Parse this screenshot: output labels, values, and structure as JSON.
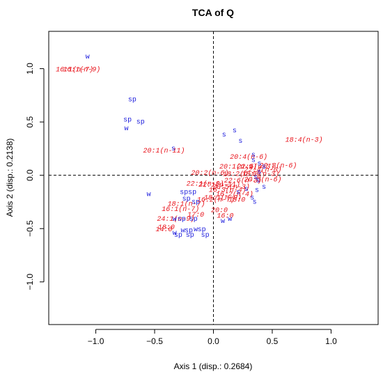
{
  "chart_data": {
    "type": "scatter",
    "title": "TCA of Q",
    "xlabel": "Axis 1 (disp.: 0.2684)",
    "ylabel": "Axis 2 (disp.: 0.2138)",
    "xlim": [
      -1.4,
      1.4
    ],
    "ylim": [
      -1.4,
      1.35
    ],
    "xticks": [
      -1.0,
      -0.5,
      0.0,
      0.5,
      1.0
    ],
    "xtick_labels": [
      "−1.0",
      "−0.5",
      "0.0",
      "0.5",
      "1.0"
    ],
    "yticks": [
      -1.0,
      -0.5,
      0.0,
      0.5,
      1.0
    ],
    "ytick_labels": [
      "−1.0",
      "−0.5",
      "0.0",
      "0.5",
      "1.0"
    ],
    "reference_lines": {
      "x": 0,
      "y": 0,
      "style": "dashed"
    },
    "colors": {
      "fatty_acids": "#e8141c",
      "conditions": "#1a1adc"
    },
    "series": [
      {
        "color": "#e8141c",
        "points": [
          {
            "x": -1.12,
            "y": 1.0,
            "label": "16:1(n-9)"
          },
          {
            "x": -1.18,
            "y": 1.0,
            "label": "16:1(n-7)"
          },
          {
            "x": -0.42,
            "y": 0.24,
            "label": "20:1(n-11)"
          },
          {
            "x": 0.77,
            "y": 0.34,
            "label": "18:4(n-3)"
          },
          {
            "x": 0.3,
            "y": 0.18,
            "label": "20:4(n-6)"
          },
          {
            "x": 0.55,
            "y": 0.1,
            "label": "20:3(n-6)"
          },
          {
            "x": 0.21,
            "y": 0.09,
            "label": "20:1(n-9)"
          },
          {
            "x": 0.36,
            "y": 0.09,
            "label": "22:5(n-3)"
          },
          {
            "x": 0.42,
            "y": 0.06,
            "label": "22:4(n-6)"
          },
          {
            "x": 0.4,
            "y": 0.02,
            "label": "18:3(n-3)"
          },
          {
            "x": 0.24,
            "y": 0.02,
            "label": "18:2(n-6)"
          },
          {
            "x": -0.03,
            "y": 0.03,
            "label": "20:2(n-6)"
          },
          {
            "x": 0.42,
            "y": -0.03,
            "label": "20:5(n-6)"
          },
          {
            "x": 0.25,
            "y": -0.04,
            "label": "22:6(n-3)"
          },
          {
            "x": -0.07,
            "y": -0.07,
            "label": "22:1(n-9)"
          },
          {
            "x": 0.05,
            "y": -0.08,
            "label": "22:1(n-11)"
          },
          {
            "x": 0.15,
            "y": -0.1,
            "label": "20:5(n-3)"
          },
          {
            "x": 0.12,
            "y": -0.13,
            "label": "16:3(n-4)"
          },
          {
            "x": 0.18,
            "y": -0.17,
            "label": "16:2(n-4)"
          },
          {
            "x": 0.08,
            "y": -0.2,
            "label": "18:1(n-9)"
          },
          {
            "x": 0.02,
            "y": -0.22,
            "label": "16:2(n-7)"
          },
          {
            "x": 0.2,
            "y": -0.22,
            "label": "15:0"
          },
          {
            "x": -0.23,
            "y": -0.26,
            "label": "18:1(n-7)"
          },
          {
            "x": -0.28,
            "y": -0.31,
            "label": "16:1(n-7)"
          },
          {
            "x": 0.05,
            "y": -0.32,
            "label": "20:0"
          },
          {
            "x": -0.15,
            "y": -0.36,
            "label": "17:0"
          },
          {
            "x": -0.32,
            "y": -0.4,
            "label": "24:1(n-9)"
          },
          {
            "x": 0.1,
            "y": -0.37,
            "label": "16:0"
          },
          {
            "x": -0.4,
            "y": -0.48,
            "label": "18:0"
          },
          {
            "x": -0.42,
            "y": -0.5,
            "label": "14:0"
          }
        ]
      },
      {
        "color": "#1a1adc",
        "points": [
          {
            "x": -1.07,
            "y": 1.12,
            "label": "w"
          },
          {
            "x": -0.69,
            "y": 0.72,
            "label": "sp"
          },
          {
            "x": -0.73,
            "y": 0.53,
            "label": "sp"
          },
          {
            "x": -0.62,
            "y": 0.51,
            "label": "sp"
          },
          {
            "x": -0.74,
            "y": 0.45,
            "label": "w"
          },
          {
            "x": 0.09,
            "y": 0.39,
            "label": "s"
          },
          {
            "x": 0.18,
            "y": 0.43,
            "label": "s"
          },
          {
            "x": -0.34,
            "y": 0.26,
            "label": "s"
          },
          {
            "x": 0.23,
            "y": 0.33,
            "label": "s"
          },
          {
            "x": 0.34,
            "y": 0.2,
            "label": "s"
          },
          {
            "x": 0.34,
            "y": 0.15,
            "label": "s"
          },
          {
            "x": 0.39,
            "y": 0.12,
            "label": "s"
          },
          {
            "x": 0.43,
            "y": 0.09,
            "label": "s"
          },
          {
            "x": 0.39,
            "y": 0.04,
            "label": "s"
          },
          {
            "x": 0.36,
            "y": -0.01,
            "label": "s"
          },
          {
            "x": 0.38,
            "y": -0.04,
            "label": "s"
          },
          {
            "x": 0.43,
            "y": -0.1,
            "label": "s"
          },
          {
            "x": 0.37,
            "y": -0.13,
            "label": "s"
          },
          {
            "x": 0.28,
            "y": -0.12,
            "label": "s"
          },
          {
            "x": 0.33,
            "y": -0.2,
            "label": "s"
          },
          {
            "x": 0.21,
            "y": -0.15,
            "label": "s"
          },
          {
            "x": 0.35,
            "y": -0.24,
            "label": "s"
          },
          {
            "x": -0.55,
            "y": -0.17,
            "label": "w"
          },
          {
            "x": -0.25,
            "y": -0.15,
            "label": "sp"
          },
          {
            "x": -0.18,
            "y": -0.15,
            "label": "sp"
          },
          {
            "x": -0.23,
            "y": -0.21,
            "label": "sp"
          },
          {
            "x": -0.15,
            "y": -0.24,
            "label": "sp"
          },
          {
            "x": -0.17,
            "y": -0.4,
            "label": "sp"
          },
          {
            "x": 0.08,
            "y": -0.42,
            "label": "w"
          },
          {
            "x": 0.14,
            "y": -0.4,
            "label": "w"
          },
          {
            "x": -0.33,
            "y": -0.4,
            "label": "w"
          },
          {
            "x": -0.27,
            "y": -0.4,
            "label": "sp"
          },
          {
            "x": -0.21,
            "y": -0.51,
            "label": "sp"
          },
          {
            "x": -0.1,
            "y": -0.5,
            "label": "sp"
          },
          {
            "x": -0.26,
            "y": -0.51,
            "label": "w"
          },
          {
            "x": -0.15,
            "y": -0.5,
            "label": "w"
          },
          {
            "x": -0.33,
            "y": -0.53,
            "label": "w"
          },
          {
            "x": -0.3,
            "y": -0.55,
            "label": "sp"
          },
          {
            "x": -0.2,
            "y": -0.55,
            "label": "sp"
          },
          {
            "x": -0.07,
            "y": -0.55,
            "label": "sp"
          }
        ]
      }
    ]
  }
}
